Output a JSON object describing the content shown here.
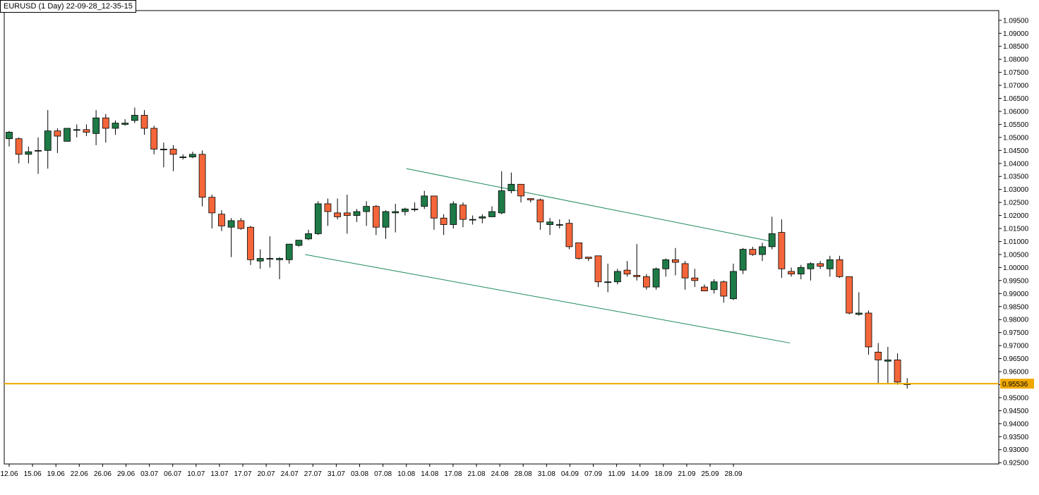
{
  "chart_data": {
    "type": "candlestick",
    "title": "EURUSD (1 Day) 22-09-28_12-35-15",
    "symbol": "EURUSD",
    "timeframe": "1 Day",
    "ylim": [
      0.925,
      1.1
    ],
    "yticks": [
      "1.09500",
      "1.09000",
      "1.08500",
      "1.08000",
      "1.07500",
      "1.07000",
      "1.06500",
      "1.06000",
      "1.05500",
      "1.05000",
      "1.04500",
      "1.04000",
      "1.03500",
      "1.03000",
      "1.02500",
      "1.02000",
      "1.01500",
      "1.01000",
      "1.00500",
      "1.00000",
      "0.99500",
      "0.99000",
      "0.98500",
      "0.98000",
      "0.97500",
      "0.97000",
      "0.96500",
      "0.96000",
      "0.95500",
      "0.95000",
      "0.94500",
      "0.94000",
      "0.93500",
      "0.93000",
      "0.92500"
    ],
    "xticks": [
      "12.06",
      "15.06",
      "19.06",
      "22.06",
      "26.06",
      "29.06",
      "03.07",
      "06.07",
      "10.07",
      "13.07",
      "17.07",
      "20.07",
      "24.07",
      "27.07",
      "31.07",
      "03.08",
      "07.08",
      "10.08",
      "14.08",
      "17.08",
      "21.08",
      "24.08",
      "28.08",
      "31.08",
      "04.09",
      "07.09",
      "11.09",
      "14.09",
      "18.09",
      "21.09",
      "25.09",
      "28.09"
    ],
    "current_price": "0.95536",
    "current_price_value": 0.95536,
    "colors": {
      "up": "#1e7a46",
      "down": "#f4663a",
      "wick": "#000000",
      "channel": "#1e8a5a",
      "price_line": "#f0a800",
      "price_label_bg": "#f0a800"
    },
    "candles": [
      {
        "o": 1.0495,
        "h": 1.0525,
        "l": 1.0465,
        "c": 1.052
      },
      {
        "o": 1.0495,
        "h": 1.05,
        "l": 1.04,
        "c": 1.0435
      },
      {
        "o": 1.0435,
        "h": 1.0465,
        "l": 1.04,
        "c": 1.0445
      },
      {
        "o": 1.045,
        "h": 1.05,
        "l": 1.036,
        "c": 1.045
      },
      {
        "o": 1.045,
        "h": 1.0605,
        "l": 1.038,
        "c": 1.0525
      },
      {
        "o": 1.0525,
        "h": 1.0535,
        "l": 1.044,
        "c": 1.0505
      },
      {
        "o": 1.0485,
        "h": 1.0535,
        "l": 1.0485,
        "c": 1.0535
      },
      {
        "o": 1.053,
        "h": 1.055,
        "l": 1.05,
        "c": 1.053
      },
      {
        "o": 1.053,
        "h": 1.055,
        "l": 1.0505,
        "c": 1.052
      },
      {
        "o": 1.0515,
        "h": 1.0605,
        "l": 1.047,
        "c": 1.0575
      },
      {
        "o": 1.0575,
        "h": 1.059,
        "l": 1.048,
        "c": 1.0535
      },
      {
        "o": 1.0535,
        "h": 1.0565,
        "l": 1.051,
        "c": 1.0555
      },
      {
        "o": 1.055,
        "h": 1.057,
        "l": 1.0545,
        "c": 1.0555
      },
      {
        "o": 1.0565,
        "h": 1.0615,
        "l": 1.0555,
        "c": 1.0585
      },
      {
        "o": 1.0585,
        "h": 1.0605,
        "l": 1.051,
        "c": 1.0535
      },
      {
        "o": 1.0535,
        "h": 1.0545,
        "l": 1.0435,
        "c": 1.0455
      },
      {
        "o": 1.0455,
        "h": 1.048,
        "l": 1.0385,
        "c": 1.0455
      },
      {
        "o": 1.0455,
        "h": 1.047,
        "l": 1.037,
        "c": 1.0435
      },
      {
        "o": 1.0425,
        "h": 1.0435,
        "l": 1.0415,
        "c": 1.0425
      },
      {
        "o": 1.0425,
        "h": 1.0445,
        "l": 1.042,
        "c": 1.0435
      },
      {
        "o": 1.0435,
        "h": 1.045,
        "l": 1.0235,
        "c": 1.027
      },
      {
        "o": 1.027,
        "h": 1.028,
        "l": 1.015,
        "c": 1.021
      },
      {
        "o": 1.0205,
        "h": 1.022,
        "l": 1.014,
        "c": 1.016
      },
      {
        "o": 1.0155,
        "h": 1.019,
        "l": 1.004,
        "c": 1.018
      },
      {
        "o": 1.018,
        "h": 1.019,
        "l": 1.0145,
        "c": 1.015
      },
      {
        "o": 1.0155,
        "h": 1.016,
        "l": 1.001,
        "c": 1.003
      },
      {
        "o": 1.0025,
        "h": 1.007,
        "l": 0.9995,
        "c": 1.0035
      },
      {
        "o": 1.0035,
        "h": 1.012,
        "l": 1.0,
        "c": 1.0035
      },
      {
        "o": 1.003,
        "h": 1.004,
        "l": 0.9955,
        "c": 1.0035
      },
      {
        "o": 1.003,
        "h": 1.009,
        "l": 1.0015,
        "c": 1.009
      },
      {
        "o": 1.0085,
        "h": 1.0105,
        "l": 1.008,
        "c": 1.0105
      },
      {
        "o": 1.011,
        "h": 1.0145,
        "l": 1.0105,
        "c": 1.013
      },
      {
        "o": 1.013,
        "h": 1.0255,
        "l": 1.0125,
        "c": 1.0245
      },
      {
        "o": 1.0245,
        "h": 1.0265,
        "l": 1.016,
        "c": 1.0215
      },
      {
        "o": 1.021,
        "h": 1.0265,
        "l": 1.0185,
        "c": 1.0195
      },
      {
        "o": 1.021,
        "h": 1.028,
        "l": 1.013,
        "c": 1.02
      },
      {
        "o": 1.02,
        "h": 1.0225,
        "l": 1.0175,
        "c": 1.0215
      },
      {
        "o": 1.0215,
        "h": 1.0255,
        "l": 1.016,
        "c": 1.0235
      },
      {
        "o": 1.0235,
        "h": 1.024,
        "l": 1.0125,
        "c": 1.0155
      },
      {
        "o": 1.0155,
        "h": 1.022,
        "l": 1.011,
        "c": 1.0215
      },
      {
        "o": 1.021,
        "h": 1.0245,
        "l": 1.0135,
        "c": 1.0215
      },
      {
        "o": 1.0215,
        "h": 1.023,
        "l": 1.02,
        "c": 1.0225
      },
      {
        "o": 1.0225,
        "h": 1.025,
        "l": 1.0215,
        "c": 1.0225
      },
      {
        "o": 1.0235,
        "h": 1.0295,
        "l": 1.0225,
        "c": 1.0275
      },
      {
        "o": 1.0275,
        "h": 1.0275,
        "l": 1.0145,
        "c": 1.019
      },
      {
        "o": 1.019,
        "h": 1.0205,
        "l": 1.0125,
        "c": 1.0165
      },
      {
        "o": 1.0165,
        "h": 1.0255,
        "l": 1.015,
        "c": 1.0245
      },
      {
        "o": 1.024,
        "h": 1.025,
        "l": 1.0155,
        "c": 1.0185
      },
      {
        "o": 1.0185,
        "h": 1.02,
        "l": 1.0165,
        "c": 1.0185
      },
      {
        "o": 1.019,
        "h": 1.0205,
        "l": 1.017,
        "c": 1.0195
      },
      {
        "o": 1.0195,
        "h": 1.0235,
        "l": 1.0195,
        "c": 1.0215
      },
      {
        "o": 1.021,
        "h": 1.037,
        "l": 1.0205,
        "c": 1.0295
      },
      {
        "o": 1.0295,
        "h": 1.0365,
        "l": 1.0285,
        "c": 1.032
      },
      {
        "o": 1.032,
        "h": 1.032,
        "l": 1.025,
        "c": 1.0275
      },
      {
        "o": 1.0265,
        "h": 1.0265,
        "l": 1.025,
        "c": 1.026
      },
      {
        "o": 1.026,
        "h": 1.0265,
        "l": 1.0145,
        "c": 1.0175
      },
      {
        "o": 1.0165,
        "h": 1.019,
        "l": 1.0125,
        "c": 1.0175
      },
      {
        "o": 1.0165,
        "h": 1.0185,
        "l": 1.015,
        "c": 1.0165
      },
      {
        "o": 1.017,
        "h": 1.0185,
        "l": 1.007,
        "c": 1.008
      },
      {
        "o": 1.0095,
        "h": 1.0095,
        "l": 1.003,
        "c": 1.0035
      },
      {
        "o": 1.004,
        "h": 1.004,
        "l": 1.0025,
        "c": 1.0035
      },
      {
        "o": 1.0045,
        "h": 1.0045,
        "l": 0.9925,
        "c": 0.9945
      },
      {
        "o": 0.9945,
        "h": 1.0015,
        "l": 0.9905,
        "c": 0.9945
      },
      {
        "o": 0.9945,
        "h": 0.9995,
        "l": 0.9935,
        "c": 0.9985
      },
      {
        "o": 0.999,
        "h": 1.0025,
        "l": 0.9965,
        "c": 0.9975
      },
      {
        "o": 0.997,
        "h": 1.009,
        "l": 0.995,
        "c": 0.9965
      },
      {
        "o": 0.9965,
        "h": 0.9975,
        "l": 0.9915,
        "c": 0.9925
      },
      {
        "o": 0.9925,
        "h": 1.0,
        "l": 0.9915,
        "c": 0.9995
      },
      {
        "o": 0.9995,
        "h": 1.0035,
        "l": 0.9965,
        "c": 1.003
      },
      {
        "o": 1.003,
        "h": 1.0075,
        "l": 0.997,
        "c": 1.002
      },
      {
        "o": 1.0015,
        "h": 1.0025,
        "l": 0.9915,
        "c": 0.996
      },
      {
        "o": 0.996,
        "h": 0.9995,
        "l": 0.9925,
        "c": 0.995
      },
      {
        "o": 0.9925,
        "h": 0.9935,
        "l": 0.9915,
        "c": 0.991
      },
      {
        "o": 0.9915,
        "h": 0.9955,
        "l": 0.99,
        "c": 0.9945
      },
      {
        "o": 0.9945,
        "h": 0.995,
        "l": 0.9865,
        "c": 0.989
      },
      {
        "o": 0.988,
        "h": 1.0015,
        "l": 0.9875,
        "c": 0.9985
      },
      {
        "o": 0.999,
        "h": 1.0075,
        "l": 0.9975,
        "c": 1.007
      },
      {
        "o": 1.007,
        "h": 1.008,
        "l": 1.0045,
        "c": 1.005
      },
      {
        "o": 1.005,
        "h": 1.0095,
        "l": 1.0025,
        "c": 1.008
      },
      {
        "o": 1.008,
        "h": 1.0195,
        "l": 1.007,
        "c": 1.013
      },
      {
        "o": 1.0135,
        "h": 1.0185,
        "l": 0.996,
        "c": 0.9995
      },
      {
        "o": 0.9985,
        "h": 1.0,
        "l": 0.9965,
        "c": 0.9975
      },
      {
        "o": 0.9975,
        "h": 1.001,
        "l": 0.9955,
        "c": 1.0
      },
      {
        "o": 0.9995,
        "h": 1.002,
        "l": 0.995,
        "c": 1.0015
      },
      {
        "o": 1.0015,
        "h": 1.0025,
        "l": 0.9995,
        "c": 1.0005
      },
      {
        "o": 0.9995,
        "h": 1.0045,
        "l": 0.9965,
        "c": 1.003
      },
      {
        "o": 1.003,
        "h": 1.0045,
        "l": 0.996,
        "c": 0.9965
      },
      {
        "o": 0.9965,
        "h": 0.9965,
        "l": 0.982,
        "c": 0.9825
      },
      {
        "o": 0.982,
        "h": 0.9905,
        "l": 0.9815,
        "c": 0.9825
      },
      {
        "o": 0.9825,
        "h": 0.9835,
        "l": 0.9665,
        "c": 0.9695
      },
      {
        "o": 0.9675,
        "h": 0.971,
        "l": 0.9555,
        "c": 0.9645
      },
      {
        "o": 0.964,
        "h": 0.9695,
        "l": 0.9555,
        "c": 0.9645
      },
      {
        "o": 0.9645,
        "h": 0.967,
        "l": 0.955,
        "c": 0.956
      },
      {
        "o": 0.955,
        "h": 0.9575,
        "l": 0.9535,
        "c": 0.9555
      }
    ],
    "channel_lines": [
      {
        "from": {
          "x": "10.08",
          "y": 1.038
        },
        "to": {
          "x": "03.10",
          "y": 1.01
        }
      },
      {
        "from": {
          "x": "26.07",
          "y": 1.005
        },
        "to": {
          "x": "04.10",
          "y": 0.971
        }
      }
    ]
  }
}
